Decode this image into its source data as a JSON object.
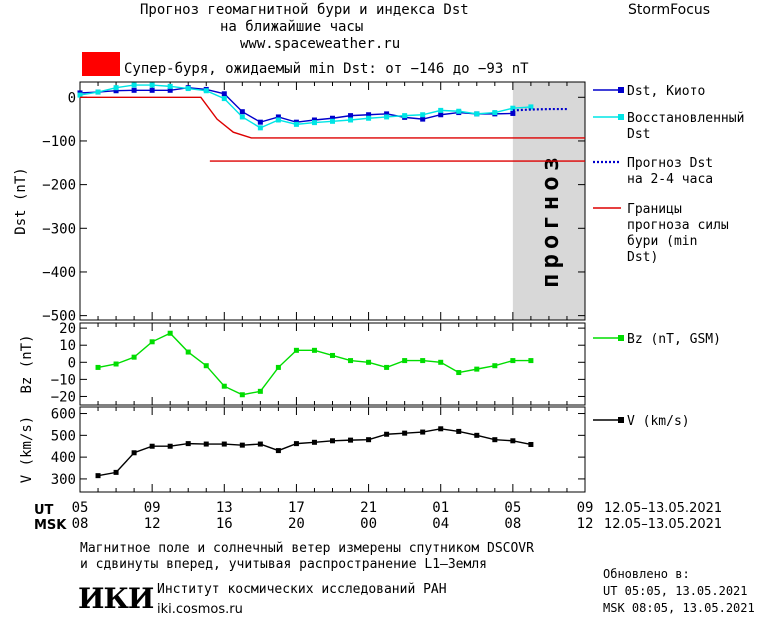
{
  "header": {
    "title_line1": "Прогноз геомагнитной бури и индекса Dst",
    "title_line2": "на ближайшие часы",
    "url": "www.spaceweather.ru",
    "brand": "StormFocus",
    "alert_color": "#ff0000",
    "alert_text": "Супер-буря, ожидаемый min Dst: от −146 до −93 nT"
  },
  "footer": {
    "note_line1": "Магнитное поле и солнечный ветер измерены спутником DSCOVR",
    "note_line2": "и сдвинуты вперед, учитывая распространение L1–Земля",
    "updated_label": "Обновлено в:",
    "updated_ut": "UT  05:05, 13.05.2021",
    "updated_msk": "MSK 08:05, 13.05.2021",
    "logo_text": "ИКИ",
    "institute": "Институт космических исследований РАН",
    "institute_url": "iki.cosmos.ru"
  },
  "chart_data": {
    "type": "line",
    "x_axis": {
      "ut_label": "UT",
      "msk_label": "MSK",
      "range_hours": [
        0,
        28
      ],
      "ut_ticks": [
        "05",
        "09",
        "13",
        "17",
        "21",
        "01",
        "05",
        "09"
      ],
      "msk_ticks": [
        "08",
        "12",
        "16",
        "20",
        "00",
        "04",
        "08",
        "12"
      ],
      "ut_range_text": "12.05–13.05.2021",
      "msk_range_text": "12.05–13.05.2021",
      "forecast_band": [
        24,
        28
      ],
      "forecast_band_color": "#d8d8d8",
      "forecast_label": "прогноз"
    },
    "panels": [
      {
        "id": "dst",
        "ylabel": "Dst (nT)",
        "ylim": [
          -510,
          35
        ],
        "yticks": [
          0,
          -100,
          -200,
          -300,
          -400,
          -500
        ],
        "series": [
          {
            "name": "Dst, Киото",
            "color": "#0000cc",
            "marker": "square",
            "x": [
              0,
              1,
              2,
              3,
              4,
              5,
              6,
              7,
              8,
              9,
              10,
              11,
              12,
              13,
              14,
              15,
              16,
              17,
              18,
              19,
              20,
              21,
              22,
              23,
              24
            ],
            "y": [
              10,
              12,
              15,
              16,
              16,
              16,
              22,
              18,
              8,
              -33,
              -57,
              -45,
              -57,
              -52,
              -48,
              -42,
              -40,
              -38,
              -46,
              -50,
              -40,
              -35,
              -38,
              -38,
              -37
            ]
          },
          {
            "name": "Восстановленный Dst",
            "color": "#00e5e5",
            "marker": "square",
            "x": [
              0,
              1,
              2,
              3,
              4,
              5,
              6,
              7,
              8,
              9,
              10,
              11,
              12,
              13,
              14,
              15,
              16,
              17,
              18,
              19,
              20,
              21,
              22,
              23,
              24,
              25
            ],
            "y": [
              5,
              12,
              22,
              28,
              28,
              25,
              20,
              15,
              -3,
              -45,
              -70,
              -52,
              -62,
              -58,
              -55,
              -52,
              -48,
              -45,
              -42,
              -40,
              -30,
              -32,
              -38,
              -35,
              -25,
              -22
            ]
          },
          {
            "name": "Прогноз Dst на 2-4 часа",
            "color": "#0000cc",
            "style": "dotted",
            "x": [
              24,
              25,
              26,
              27
            ],
            "y": [
              -30,
              -28,
              -27,
              -27
            ]
          },
          {
            "name": "Границы прогноза силы бури (min Dst)",
            "color": "#dd0000",
            "x": [
              0,
              6.7,
              7.6,
              8.5,
              9.5,
              28
            ],
            "y": [
              0,
              0,
              -50,
              -80,
              -93,
              -93
            ]
          },
          {
            "name": "",
            "color": "#dd0000",
            "x": [
              7.2,
              28
            ],
            "y": [
              -146,
              -146
            ]
          }
        ]
      },
      {
        "id": "bz",
        "ylabel": "Bz (nT)",
        "ylim": [
          -25,
          23
        ],
        "yticks": [
          20,
          10,
          0,
          -10,
          -20
        ],
        "series": [
          {
            "name": "Bz (nT, GSM)",
            "color": "#00dd00",
            "marker": "square",
            "x": [
              1,
              2,
              3,
              4,
              5,
              6,
              7,
              8,
              9,
              10,
              11,
              12,
              13,
              14,
              15,
              16,
              17,
              18,
              19,
              20,
              21,
              22,
              23,
              24,
              25
            ],
            "y": [
              -3,
              -1,
              3,
              12,
              17,
              6,
              -2,
              -14,
              -19,
              -17,
              -3,
              7,
              7,
              4,
              1,
              0,
              -3,
              1,
              1,
              0,
              -6,
              -4,
              -2,
              1,
              1
            ]
          }
        ]
      },
      {
        "id": "v",
        "ylabel": "V (km/s)",
        "ylim": [
          240,
          630
        ],
        "yticks": [
          600,
          500,
          400,
          300
        ],
        "series": [
          {
            "name": "V (km/s)",
            "color": "#000000",
            "marker": "square",
            "x": [
              1,
              2,
              3,
              4,
              5,
              6,
              7,
              8,
              9,
              10,
              11,
              12,
              13,
              14,
              15,
              16,
              17,
              18,
              19,
              20,
              21,
              22,
              23,
              24,
              25
            ],
            "y": [
              315,
              330,
              420,
              450,
              450,
              462,
              460,
              460,
              455,
              460,
              430,
              462,
              468,
              475,
              478,
              480,
              505,
              510,
              515,
              530,
              518,
              500,
              480,
              475,
              458
            ]
          }
        ]
      }
    ]
  }
}
